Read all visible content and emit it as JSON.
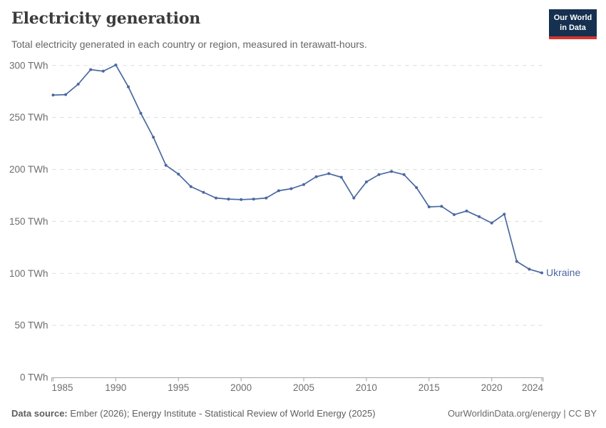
{
  "header": {
    "title": "Electricity generation",
    "subtitle": "Total electricity generated in each country or region, measured in terawatt-hours.",
    "logo": {
      "line1": "Our World",
      "line2": "in Data",
      "bg_color": "#16304f",
      "accent_color": "#d8352c"
    }
  },
  "chart_data": {
    "type": "line",
    "title": "Electricity generation",
    "unit": "TWh",
    "xlim": [
      1985,
      2024
    ],
    "ylim": [
      0,
      300
    ],
    "x_ticks": [
      1985,
      1990,
      1995,
      2000,
      2005,
      2010,
      2015,
      2020,
      2024
    ],
    "y_ticks": [
      0,
      50,
      100,
      150,
      200,
      250,
      300
    ],
    "grid": "horizontal-dashed",
    "legend_position": "end-of-line-label",
    "series": [
      {
        "name": "Ukraine",
        "color": "#4a68a1",
        "x": [
          1985,
          1986,
          1987,
          1988,
          1989,
          1990,
          1991,
          1992,
          1993,
          1994,
          1995,
          1996,
          1997,
          1998,
          1999,
          2000,
          2001,
          2002,
          2003,
          2004,
          2005,
          2006,
          2007,
          2008,
          2009,
          2010,
          2011,
          2012,
          2013,
          2014,
          2015,
          2016,
          2017,
          2018,
          2019,
          2020,
          2021,
          2022,
          2023,
          2024
        ],
        "values": [
          271.5,
          272,
          282,
          296,
          294.5,
          300.5,
          279.5,
          254,
          231,
          204,
          195.5,
          183.5,
          178,
          172.5,
          171.5,
          171,
          171.5,
          172.5,
          179.5,
          181.5,
          185.5,
          193,
          196,
          192.5,
          172.5,
          188,
          195,
          198,
          195,
          182.5,
          164,
          164.5,
          156.5,
          160,
          154.5,
          148.5,
          157,
          111.5,
          104,
          100.5
        ]
      }
    ]
  },
  "footer": {
    "source_label": "Data source:",
    "source_text": " Ember (2026); Energy Institute - Statistical Review of World Energy (2025)",
    "credit": "OurWorldinData.org/energy | CC BY"
  },
  "colors": {
    "line": "#4a68a1",
    "grid": "#dcdcdc",
    "axis": "#a3a3a3",
    "tick_label": "#6e6e6e",
    "title": "#3b3b3b",
    "subtitle": "#666666",
    "footer": "#5e5e5e"
  }
}
